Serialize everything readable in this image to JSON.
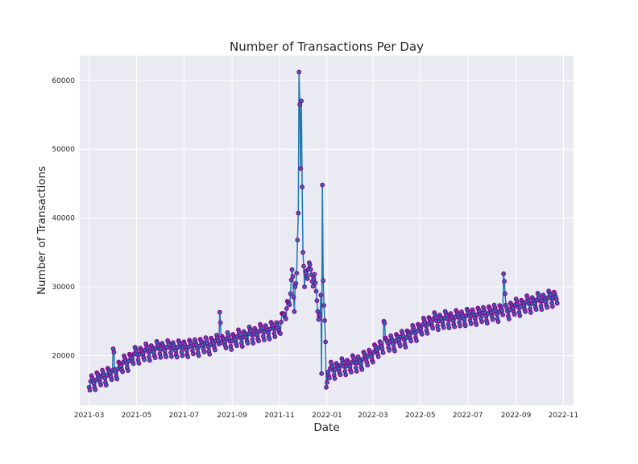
{
  "chart_data": {
    "type": "line",
    "title": "Number of Transactions Per Day",
    "xlabel": "Date",
    "ylabel": "Number of Transactions",
    "x_ticks": [
      "2021-03",
      "2021-05",
      "2021-07",
      "2021-09",
      "2021-11",
      "2022-01",
      "2022-03",
      "2022-05",
      "2022-07",
      "2022-09",
      "2022-11"
    ],
    "y_ticks": [
      20000,
      30000,
      40000,
      50000,
      60000
    ],
    "xlim": [
      "2021-02-17",
      "2022-11-14"
    ],
    "ylim": [
      12800,
      63600
    ],
    "grid": true,
    "line_color": "#1f77b4",
    "marker_fill": "#1f77b4",
    "marker_edge": "#8b008b",
    "background": "#eaeaf2",
    "start_date": "2021-03-01",
    "end_date": "2022-10-24",
    "anchors": [
      [
        "2021-03-01",
        16000
      ],
      [
        "2021-04-01",
        17600
      ],
      [
        "2021-05-01",
        20200
      ],
      [
        "2021-06-01",
        21000
      ],
      [
        "2021-07-01",
        21100
      ],
      [
        "2021-08-01",
        21600
      ],
      [
        "2021-09-01",
        22300
      ],
      [
        "2021-10-01",
        23200
      ],
      [
        "2021-10-31",
        24000
      ],
      [
        "2021-11-15",
        28000
      ],
      [
        "2021-11-22",
        32000
      ],
      [
        "2021-12-01",
        31500
      ],
      [
        "2021-12-10",
        32500
      ],
      [
        "2021-12-16",
        31000
      ],
      [
        "2021-12-20",
        27000
      ],
      [
        "2021-12-24",
        24000
      ],
      [
        "2021-12-28",
        17500
      ],
      [
        "2022-01-15",
        18200
      ],
      [
        "2022-02-15",
        19200
      ],
      [
        "2022-03-15",
        21500
      ],
      [
        "2022-04-15",
        22800
      ],
      [
        "2022-05-15",
        25000
      ],
      [
        "2022-06-15",
        25400
      ],
      [
        "2022-07-15",
        25900
      ],
      [
        "2022-08-15",
        26500
      ],
      [
        "2022-09-15",
        27500
      ],
      [
        "2022-10-24",
        28500
      ]
    ],
    "weekly_amplitude": 2200,
    "overrides": [
      [
        "2021-04-01",
        21000
      ],
      [
        "2021-04-02",
        20500
      ],
      [
        "2021-08-16",
        26300
      ],
      [
        "2021-08-17",
        24800
      ],
      [
        "2021-11-15",
        29000
      ],
      [
        "2021-11-16",
        31000
      ],
      [
        "2021-11-17",
        32500
      ],
      [
        "2021-11-18",
        31500
      ],
      [
        "2021-11-19",
        28500
      ],
      [
        "2021-11-20",
        26400
      ],
      [
        "2021-11-21",
        30000
      ],
      [
        "2021-11-22",
        30500
      ],
      [
        "2021-11-23",
        32000
      ],
      [
        "2021-11-24",
        36800
      ],
      [
        "2021-11-25",
        40700
      ],
      [
        "2021-11-26",
        61200
      ],
      [
        "2021-11-27",
        56500
      ],
      [
        "2021-11-28",
        47200
      ],
      [
        "2021-11-29",
        57000
      ],
      [
        "2021-11-30",
        44500
      ],
      [
        "2021-12-01",
        35000
      ],
      [
        "2021-12-02",
        33000
      ],
      [
        "2021-12-03",
        30000
      ],
      [
        "2021-12-24",
        28800
      ],
      [
        "2021-12-25",
        17400
      ],
      [
        "2021-12-26",
        44800
      ],
      [
        "2021-12-27",
        30900
      ],
      [
        "2021-12-28",
        27300
      ],
      [
        "2021-12-29",
        25100
      ],
      [
        "2021-12-30",
        22000
      ],
      [
        "2021-12-31",
        15400
      ],
      [
        "2022-01-01",
        16100
      ],
      [
        "2022-03-15",
        25000
      ],
      [
        "2022-03-16",
        24700
      ],
      [
        "2022-08-16",
        31900
      ],
      [
        "2022-08-17",
        30800
      ],
      [
        "2022-08-18",
        29000
      ]
    ]
  }
}
